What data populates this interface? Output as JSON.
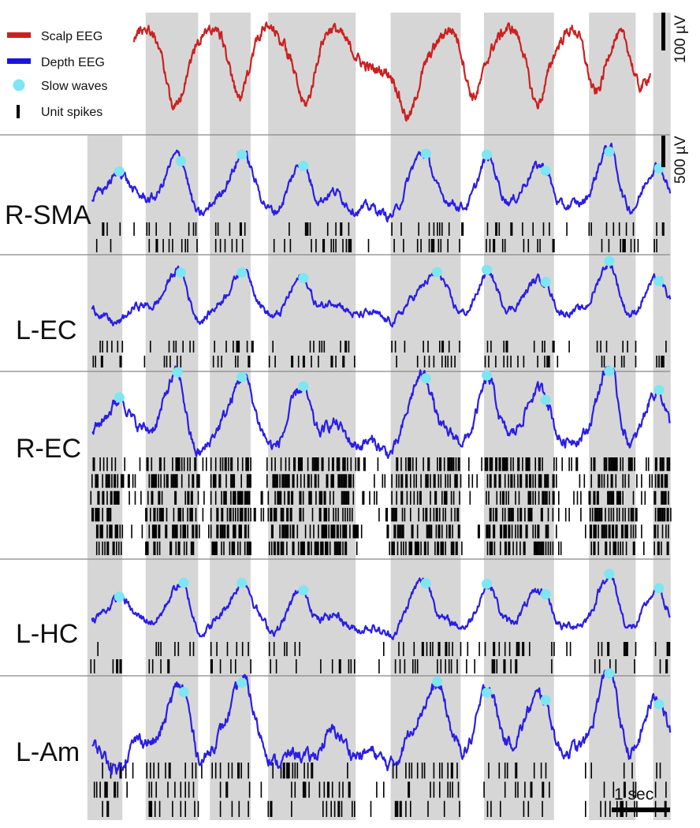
{
  "chart_data": {
    "type": "line",
    "time_scale": {
      "label": "1 sec",
      "seconds": 1
    },
    "scalp_scale": {
      "label": "100 µV",
      "value_uv": 100
    },
    "depth_scale": {
      "label": "500 µV",
      "value_uv": 500
    },
    "legend": [
      {
        "label": "Scalp EEG",
        "color": "#cc2020",
        "symbol": "line"
      },
      {
        "label": "Depth EEG",
        "color": "#1a14e0",
        "symbol": "line"
      },
      {
        "label": "Slow waves",
        "color": "#7de6f2",
        "symbol": "dot"
      },
      {
        "label": "Unit spikes",
        "color": "#000000",
        "symbol": "tick"
      }
    ],
    "colors": {
      "scalp": "#cc2020",
      "depth": "#2a1ee6",
      "slow_wave": "#7de6f2",
      "shade": "#d6d6d6",
      "spike": "#000000",
      "divider": "#888888"
    },
    "shaded_intervals_s": [
      [
        -0.8,
        -0.2
      ],
      [
        0.2,
        1.1
      ],
      [
        1.3,
        2.0
      ],
      [
        2.3,
        3.8
      ],
      [
        4.4,
        5.6
      ],
      [
        6.0,
        7.2
      ],
      [
        7.8,
        8.6
      ],
      [
        8.9,
        9.2
      ]
    ],
    "scalp_trough_times_s": [
      0.7,
      1.8,
      2.95,
      4.7,
      5.8,
      6.9,
      7.9,
      8.65
    ],
    "scalp_peak_times_s": [
      0.2,
      1.35,
      2.3,
      3.4,
      5.45,
      6.45,
      7.55,
      8.45
    ],
    "regions": [
      {
        "name": "R-SMA",
        "slow_wave_times_s": [
          -0.25,
          0.8,
          1.85,
          2.9,
          5.0,
          6.05,
          7.05,
          8.15,
          9.0
        ],
        "unit_rows": 2
      },
      {
        "name": "L-EC",
        "slow_wave_times_s": [
          0.8,
          1.85,
          2.9,
          5.2,
          6.05,
          7.05,
          8.15,
          9.0
        ],
        "unit_rows": 2
      },
      {
        "name": "R-EC",
        "slow_wave_times_s": [
          -0.25,
          0.75,
          1.85,
          2.9,
          5.0,
          6.05,
          7.05,
          8.15,
          9.0
        ],
        "unit_rows": 6
      },
      {
        "name": "L-HC",
        "slow_wave_times_s": [
          -0.25,
          0.85,
          1.85,
          2.9,
          5.0,
          6.05,
          7.05,
          8.15,
          9.0
        ],
        "unit_rows": 2
      },
      {
        "name": "L-Am",
        "slow_wave_times_s": [
          0.85,
          1.85,
          5.2,
          6.05,
          7.05,
          8.15,
          9.0
        ],
        "unit_rows": 3
      }
    ]
  }
}
